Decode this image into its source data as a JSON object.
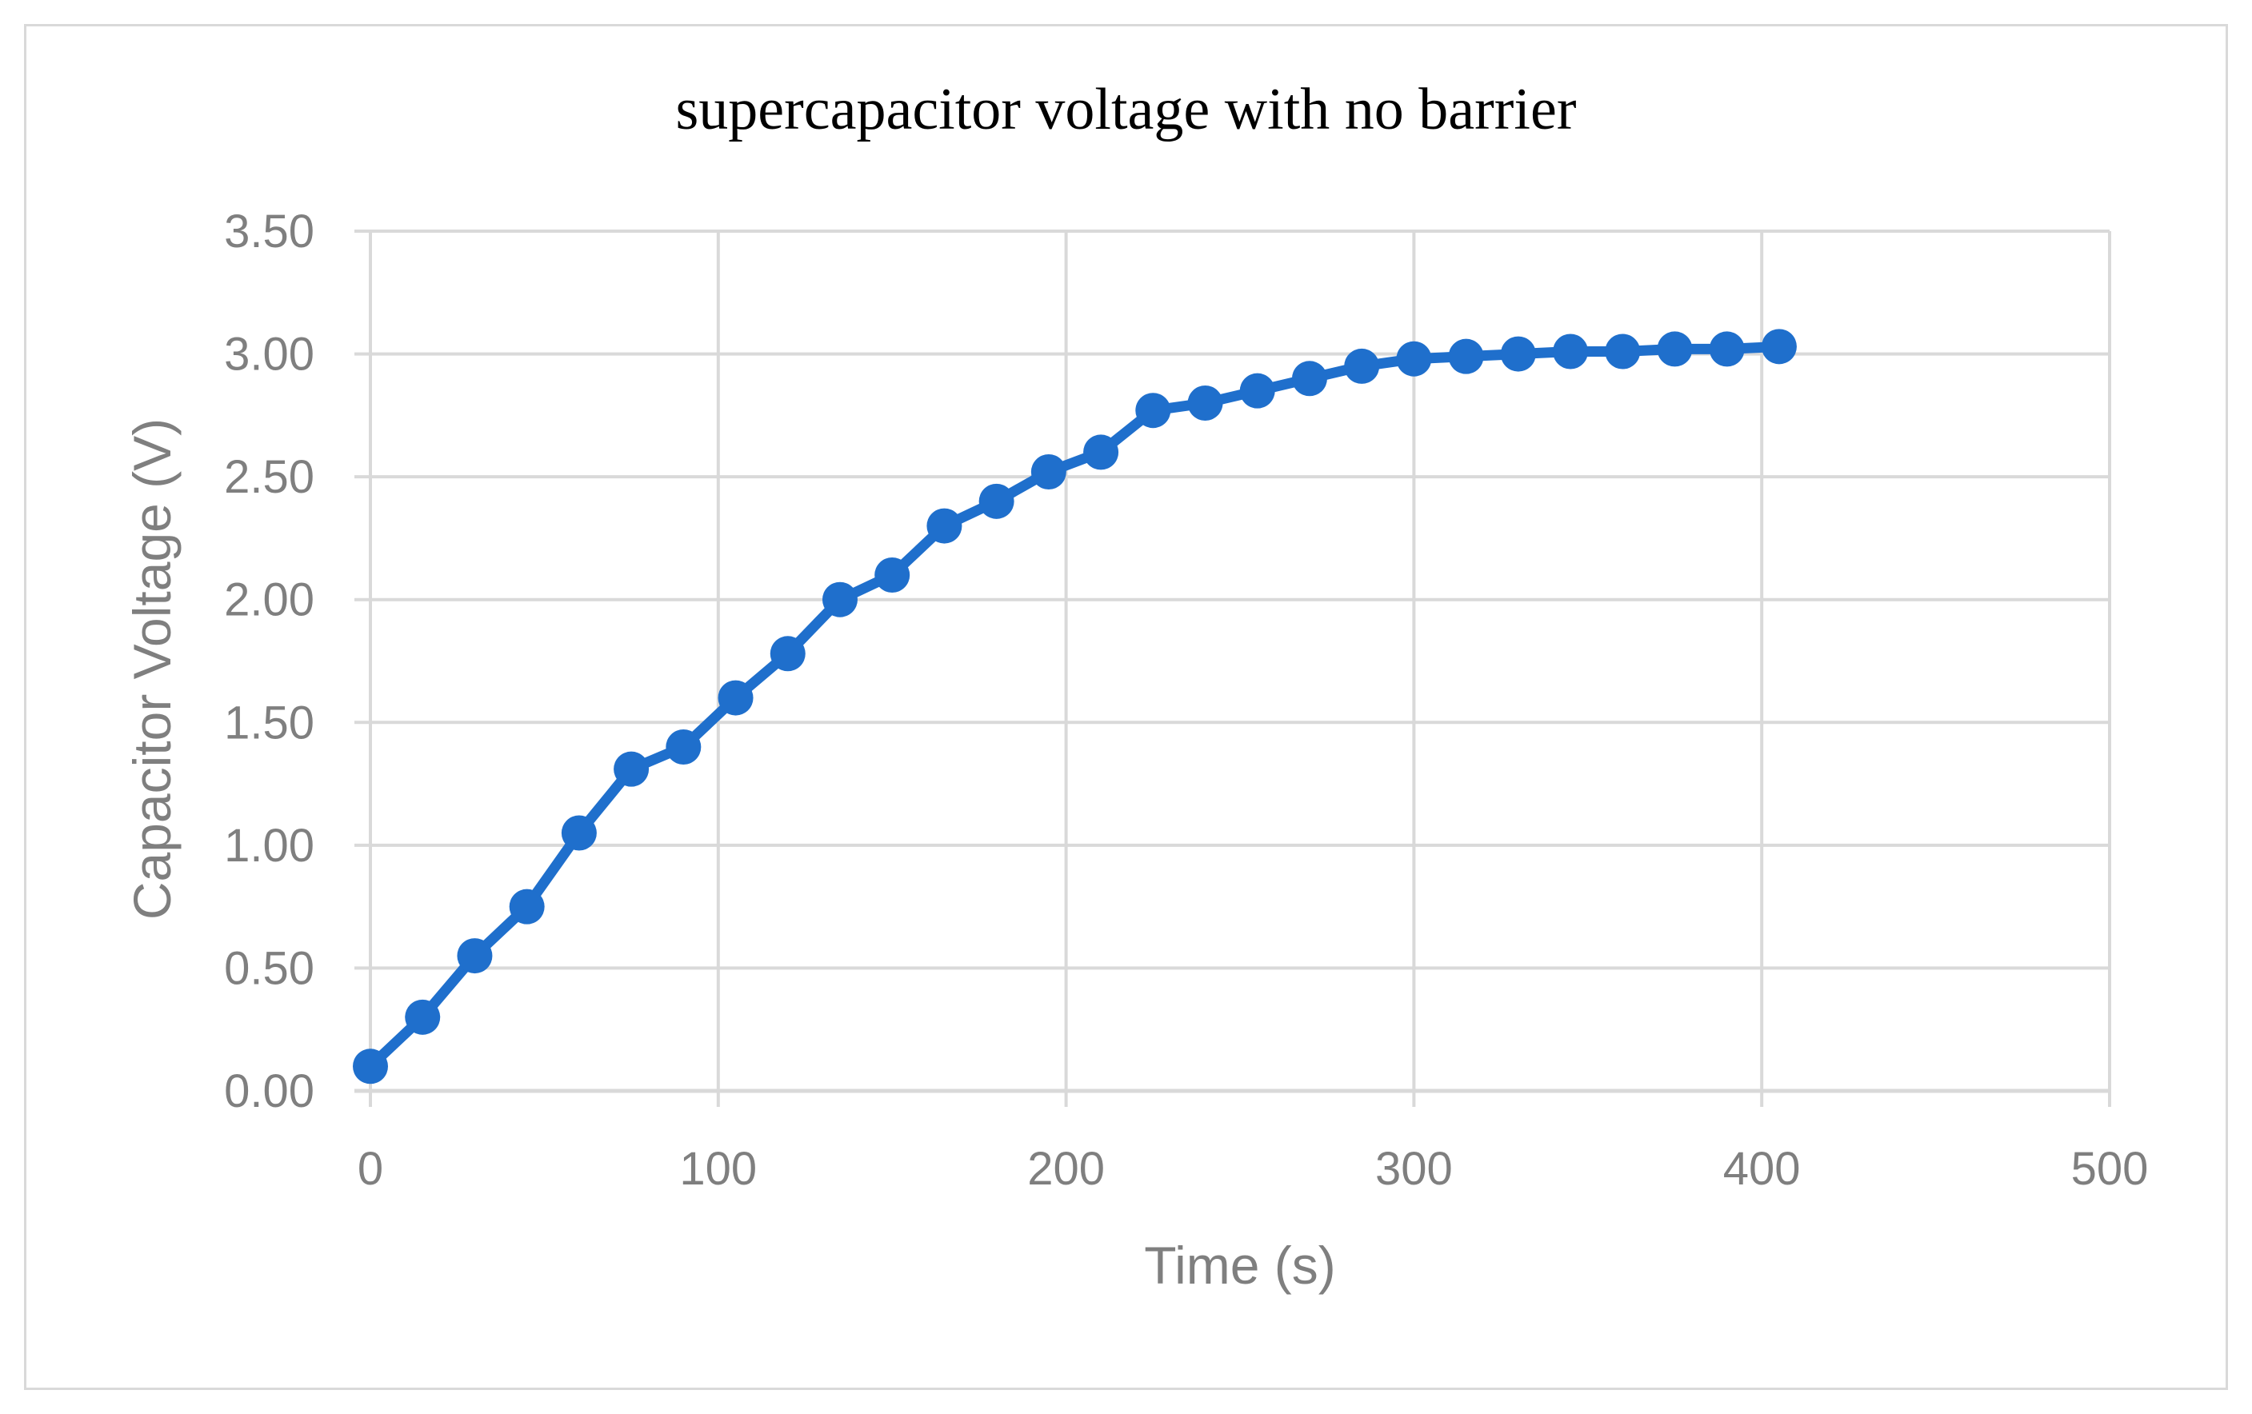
{
  "chart_data": {
    "type": "line",
    "title": "supercapacitor voltage with no barrier",
    "xlabel": "Time (s)",
    "ylabel": "Capacitor Voltage (V)",
    "xlim": [
      0,
      500
    ],
    "ylim": [
      0,
      3.5
    ],
    "x_ticks": [
      "0",
      "100",
      "200",
      "300",
      "400",
      "500"
    ],
    "y_ticks": [
      "0.00",
      "0.50",
      "1.00",
      "1.50",
      "2.00",
      "2.50",
      "3.00",
      "3.50"
    ],
    "grid": true,
    "legend": "none",
    "series": [
      {
        "color": "#1f6fcc",
        "marker": "circle",
        "x": [
          0,
          15,
          30,
          45,
          60,
          75,
          90,
          105,
          120,
          135,
          150,
          165,
          180,
          195,
          210,
          225,
          240,
          255,
          270,
          285,
          300,
          315,
          330,
          345,
          360,
          375,
          390,
          405
        ],
        "y": [
          0.1,
          0.3,
          0.55,
          0.75,
          1.05,
          1.31,
          1.4,
          1.6,
          1.78,
          2.0,
          2.1,
          2.3,
          2.4,
          2.52,
          2.6,
          2.77,
          2.8,
          2.85,
          2.9,
          2.95,
          2.98,
          2.99,
          3.0,
          3.01,
          3.01,
          3.02,
          3.02,
          3.03
        ]
      }
    ]
  }
}
